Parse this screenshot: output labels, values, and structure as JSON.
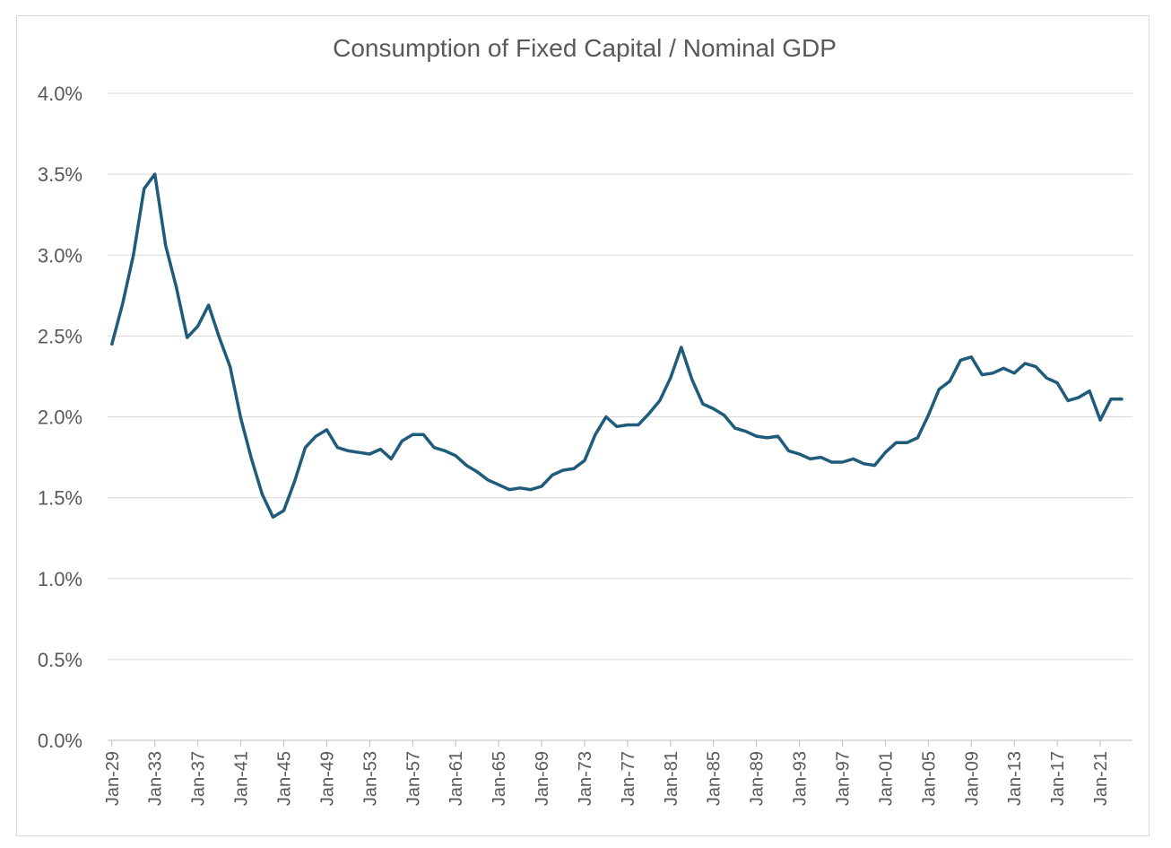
{
  "chart_data": {
    "type": "line",
    "title": "Consumption of Fixed Capital / Nominal GDP",
    "xlabel": "",
    "ylabel": "",
    "ylim": [
      0,
      4
    ],
    "grid": true,
    "y_tick_labels": [
      "0.0%",
      "0.5%",
      "1.0%",
      "1.5%",
      "2.0%",
      "2.5%",
      "3.0%",
      "3.5%",
      "4.0%"
    ],
    "x_tick_labels": [
      "Jan-29",
      "Jan-33",
      "Jan-37",
      "Jan-41",
      "Jan-45",
      "Jan-49",
      "Jan-53",
      "Jan-57",
      "Jan-61",
      "Jan-65",
      "Jan-69",
      "Jan-73",
      "Jan-77",
      "Jan-81",
      "Jan-85",
      "Jan-89",
      "Jan-93",
      "Jan-97",
      "Jan-01",
      "Jan-05",
      "Jan-09",
      "Jan-13",
      "Jan-17",
      "Jan-21"
    ],
    "line_color": "#1f5b7a",
    "series": [
      {
        "x": [
          1929,
          1930,
          1931,
          1932,
          1933,
          1934,
          1935,
          1936,
          1937,
          1938,
          1939,
          1940,
          1941,
          1942,
          1943,
          1944,
          1945,
          1946,
          1947,
          1948,
          1949,
          1950,
          1951,
          1952,
          1953,
          1954,
          1955,
          1956,
          1957,
          1958,
          1959,
          1960,
          1961,
          1962,
          1963,
          1964,
          1965,
          1966,
          1967,
          1968,
          1969,
          1970,
          1971,
          1972,
          1973,
          1974,
          1975,
          1976,
          1977,
          1978,
          1979,
          1980,
          1981,
          1982,
          1983,
          1984,
          1985,
          1986,
          1987,
          1988,
          1989,
          1990,
          1991,
          1992,
          1993,
          1994,
          1995,
          1996,
          1997,
          1998,
          1999,
          2000,
          2001,
          2002,
          2003,
          2004,
          2005,
          2006,
          2007,
          2008,
          2009,
          2010,
          2011,
          2012,
          2013,
          2014,
          2015,
          2016,
          2017,
          2018,
          2019,
          2020,
          2021,
          2022,
          2023
        ],
        "values": [
          2.45,
          2.7,
          3.0,
          3.41,
          3.5,
          3.06,
          2.8,
          2.49,
          2.56,
          2.69,
          2.49,
          2.31,
          1.99,
          1.74,
          1.52,
          1.38,
          1.42,
          1.6,
          1.81,
          1.88,
          1.92,
          1.81,
          1.79,
          1.78,
          1.77,
          1.8,
          1.74,
          1.85,
          1.89,
          1.89,
          1.81,
          1.79,
          1.76,
          1.7,
          1.66,
          1.61,
          1.58,
          1.55,
          1.56,
          1.55,
          1.57,
          1.64,
          1.67,
          1.68,
          1.73,
          1.89,
          2.0,
          1.94,
          1.95,
          1.95,
          2.02,
          2.1,
          2.24,
          2.43,
          2.23,
          2.08,
          2.05,
          2.01,
          1.93,
          1.91,
          1.88,
          1.87,
          1.88,
          1.79,
          1.77,
          1.74,
          1.75,
          1.72,
          1.72,
          1.74,
          1.71,
          1.7,
          1.78,
          1.84,
          1.84,
          1.87,
          2.01,
          2.17,
          2.22,
          2.35,
          2.37,
          2.26,
          2.27,
          2.3,
          2.27,
          2.33,
          2.31,
          2.24,
          2.21,
          2.1,
          2.12,
          2.16,
          1.98,
          2.11,
          2.11
        ]
      }
    ]
  }
}
